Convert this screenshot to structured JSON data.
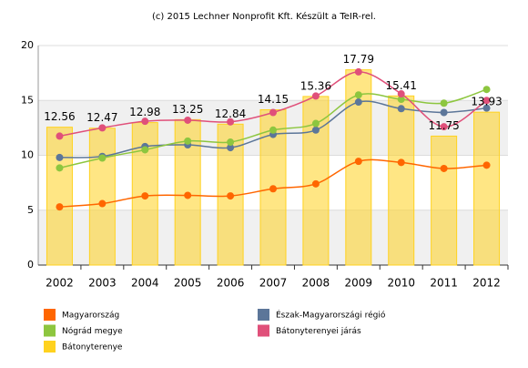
{
  "chart_data": {
    "type": "combo",
    "title": "(c) 2015 Lechner Nonprofit Kft. Készült a TeIR-rel.",
    "categories": [
      "2002",
      "2003",
      "2004",
      "2005",
      "2006",
      "2007",
      "2008",
      "2009",
      "2010",
      "2011",
      "2012"
    ],
    "series": [
      {
        "name": "Magyarország",
        "type": "line",
        "color": "#ff6600",
        "values": [
          5.3,
          5.6,
          6.3,
          6.35,
          6.3,
          6.95,
          7.4,
          9.45,
          9.35,
          8.8,
          9.1
        ]
      },
      {
        "name": "Észak-Magyarországi régió",
        "type": "line",
        "color": "#5c7699",
        "values": [
          9.8,
          9.9,
          10.8,
          10.95,
          10.7,
          11.9,
          12.3,
          14.85,
          14.25,
          13.9,
          14.3
        ]
      },
      {
        "name": "Nógrád megye",
        "type": "line",
        "color": "#8dc63f",
        "values": [
          8.85,
          9.75,
          10.5,
          11.3,
          11.2,
          12.3,
          12.9,
          15.5,
          15.1,
          14.75,
          16.0
        ]
      },
      {
        "name": "Bátonyterenyei járás",
        "type": "line",
        "color": "#e0507a",
        "values": [
          11.75,
          12.5,
          13.1,
          13.2,
          13.05,
          13.9,
          15.4,
          17.6,
          15.6,
          12.6,
          15.0
        ]
      },
      {
        "name": "Bátonyterenye",
        "type": "bar",
        "color": "#ffd21f",
        "values": [
          12.56,
          12.47,
          12.98,
          13.25,
          12.84,
          14.15,
          15.36,
          17.79,
          15.41,
          11.75,
          13.93
        ]
      }
    ],
    "ylim": [
      0,
      20
    ],
    "yticks": [
      0,
      5,
      10,
      15,
      20
    ],
    "grid": true
  }
}
